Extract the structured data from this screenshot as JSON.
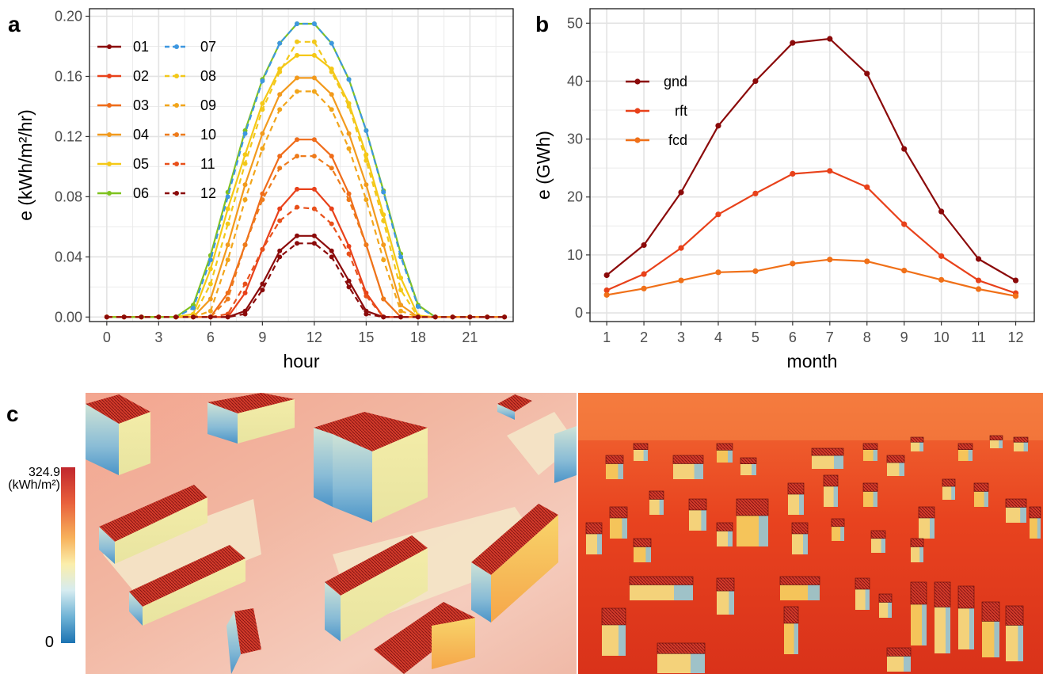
{
  "panels": {
    "a": "a",
    "b": "b",
    "c": "c"
  },
  "colorbar": {
    "max_label": "324.9",
    "unit_label": "(kWh/m²)",
    "min_label": "0",
    "colors": [
      "#c1272d",
      "#e8603c",
      "#f7b15b",
      "#fbeeab",
      "#d6ecf0",
      "#6fb3d6",
      "#1c73b2"
    ]
  },
  "chart_data": [
    {
      "type": "line",
      "xlabel": "hour",
      "ylabel": "e (kWh/m²/hr)",
      "xlim": [
        -1,
        23.5
      ],
      "ylim": [
        -0.003,
        0.205
      ],
      "xticks": [
        0,
        3,
        6,
        9,
        12,
        15,
        18,
        21
      ],
      "yticks": [
        0.0,
        0.04,
        0.08,
        0.12,
        0.16,
        0.2
      ],
      "ytick_labels": [
        "0.00",
        "0.04",
        "0.08",
        "0.12",
        "0.16",
        "0.20"
      ],
      "grid": true,
      "legend_position": "top-left",
      "x": [
        0,
        1,
        2,
        3,
        4,
        5,
        6,
        7,
        8,
        9,
        10,
        11,
        12,
        13,
        14,
        15,
        16,
        17,
        18,
        19,
        20,
        21,
        22,
        23
      ],
      "series": [
        {
          "name": "01",
          "color": "#8b0a0a",
          "dash": false,
          "values": [
            0,
            0,
            0,
            0,
            0,
            0,
            0,
            0,
            0.004,
            0.022,
            0.044,
            0.054,
            0.054,
            0.044,
            0.024,
            0.004,
            0,
            0,
            0,
            0,
            0,
            0,
            0,
            0
          ]
        },
        {
          "name": "02",
          "color": "#e8411a",
          "dash": false,
          "values": [
            0,
            0,
            0,
            0,
            0,
            0,
            0,
            0,
            0.016,
            0.045,
            0.072,
            0.085,
            0.085,
            0.072,
            0.047,
            0.016,
            0,
            0,
            0,
            0,
            0,
            0,
            0,
            0
          ]
        },
        {
          "name": "03",
          "color": "#ef6c1a",
          "dash": false,
          "values": [
            0,
            0,
            0,
            0,
            0,
            0,
            0,
            0.016,
            0.048,
            0.082,
            0.107,
            0.118,
            0.118,
            0.107,
            0.082,
            0.048,
            0.012,
            0,
            0,
            0,
            0,
            0,
            0,
            0
          ]
        },
        {
          "name": "04",
          "color": "#f29a1d",
          "dash": false,
          "values": [
            0,
            0,
            0,
            0,
            0,
            0,
            0.012,
            0.048,
            0.088,
            0.122,
            0.148,
            0.159,
            0.159,
            0.148,
            0.122,
            0.088,
            0.048,
            0.008,
            0,
            0,
            0,
            0,
            0,
            0
          ]
        },
        {
          "name": "05",
          "color": "#f5c816",
          "dash": false,
          "values": [
            0,
            0,
            0,
            0,
            0,
            0.002,
            0.032,
            0.072,
            0.108,
            0.142,
            0.165,
            0.174,
            0.174,
            0.165,
            0.142,
            0.108,
            0.068,
            0.026,
            0.001,
            0,
            0,
            0,
            0,
            0
          ]
        },
        {
          "name": "06",
          "color": "#7fc21f",
          "dash": false,
          "values": [
            0,
            0,
            0,
            0,
            0,
            0.008,
            0.041,
            0.083,
            0.124,
            0.158,
            0.182,
            0.195,
            0.195,
            0.182,
            0.158,
            0.124,
            0.084,
            0.042,
            0.008,
            0,
            0,
            0,
            0,
            0
          ]
        },
        {
          "name": "07",
          "color": "#3d97e0",
          "dash": true,
          "values": [
            0,
            0,
            0,
            0,
            0,
            0.006,
            0.038,
            0.08,
            0.122,
            0.157,
            0.182,
            0.195,
            0.195,
            0.182,
            0.158,
            0.124,
            0.083,
            0.04,
            0.007,
            0,
            0,
            0,
            0,
            0
          ]
        },
        {
          "name": "08",
          "color": "#f2c81a",
          "dash": true,
          "values": [
            0,
            0,
            0,
            0,
            0,
            0,
            0.022,
            0.062,
            0.102,
            0.138,
            0.163,
            0.183,
            0.183,
            0.163,
            0.14,
            0.104,
            0.064,
            0.018,
            0,
            0,
            0,
            0,
            0,
            0
          ]
        },
        {
          "name": "09",
          "color": "#f2a51a",
          "dash": true,
          "values": [
            0,
            0,
            0,
            0,
            0,
            0,
            0.004,
            0.038,
            0.078,
            0.112,
            0.138,
            0.15,
            0.15,
            0.138,
            0.112,
            0.078,
            0.038,
            0.004,
            0,
            0,
            0,
            0,
            0,
            0
          ]
        },
        {
          "name": "10",
          "color": "#ee7b1b",
          "dash": true,
          "values": [
            0,
            0,
            0,
            0,
            0,
            0,
            0,
            0.012,
            0.048,
            0.078,
            0.099,
            0.107,
            0.107,
            0.099,
            0.078,
            0.048,
            0.012,
            0,
            0,
            0,
            0,
            0,
            0,
            0
          ]
        },
        {
          "name": "11",
          "color": "#e8501a",
          "dash": true,
          "values": [
            0,
            0,
            0,
            0,
            0,
            0,
            0,
            0.002,
            0.022,
            0.045,
            0.064,
            0.073,
            0.072,
            0.062,
            0.042,
            0.014,
            0,
            0,
            0,
            0,
            0,
            0,
            0,
            0
          ]
        },
        {
          "name": "12",
          "color": "#8b0a0a",
          "dash": true,
          "values": [
            0,
            0,
            0,
            0,
            0,
            0,
            0,
            0,
            0.002,
            0.018,
            0.04,
            0.049,
            0.049,
            0.04,
            0.02,
            0.002,
            0,
            0,
            0,
            0,
            0,
            0,
            0,
            0
          ]
        }
      ]
    },
    {
      "type": "line",
      "xlabel": "month",
      "ylabel": "e (GWh)",
      "xlim": [
        0.55,
        12.5
      ],
      "ylim": [
        -1.5,
        52.5
      ],
      "xticks": [
        1,
        2,
        3,
        4,
        5,
        6,
        7,
        8,
        9,
        10,
        11,
        12
      ],
      "yticks": [
        0,
        10,
        20,
        30,
        40,
        50
      ],
      "grid": true,
      "legend_position": "top-left",
      "x": [
        1,
        2,
        3,
        4,
        5,
        6,
        7,
        8,
        9,
        10,
        11,
        12
      ],
      "series": [
        {
          "name": "gnd",
          "color": "#8b0a0a",
          "values": [
            6.5,
            11.7,
            20.8,
            32.3,
            40.0,
            46.6,
            47.3,
            41.3,
            28.3,
            17.5,
            9.3,
            5.6
          ]
        },
        {
          "name": "rft",
          "color": "#e8411a",
          "values": [
            3.9,
            6.7,
            11.2,
            17.0,
            20.6,
            24.0,
            24.5,
            21.7,
            15.3,
            9.8,
            5.6,
            3.4
          ]
        },
        {
          "name": "fcd",
          "color": "#f07018",
          "values": [
            3.1,
            4.2,
            5.6,
            7.0,
            7.2,
            8.5,
            9.2,
            8.9,
            7.3,
            5.7,
            4.1,
            2.9
          ]
        }
      ]
    }
  ]
}
